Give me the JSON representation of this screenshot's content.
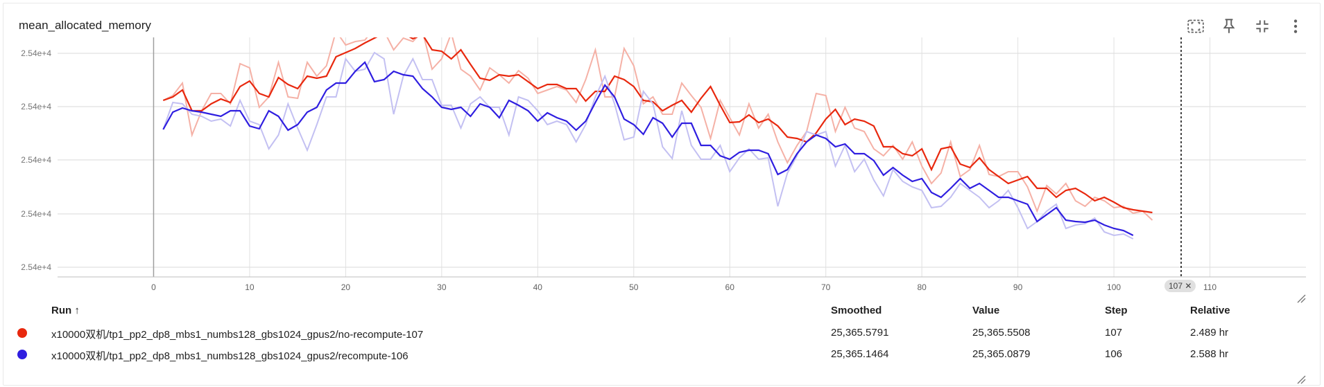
{
  "card": {
    "title": "mean_allocated_memory"
  },
  "toolbar": {
    "icons": [
      "fit-to-screen-icon",
      "pin-icon",
      "collapse-icon",
      "more-vert-icon"
    ]
  },
  "colors": {
    "series1": "#e8280e",
    "series1_raw": "#f5b1a6",
    "series2": "#2f1ee0",
    "series2_raw": "#c3c0f2"
  },
  "chart_data": {
    "type": "line",
    "title": "",
    "xlabel": "",
    "ylabel": "",
    "xlim": [
      -10,
      120
    ],
    "x_ticks": [
      0,
      10,
      20,
      30,
      40,
      50,
      60,
      70,
      80,
      90,
      100,
      110
    ],
    "y_tick_labels": [
      "2.54e+4",
      "2.54e+4",
      "2.54e+4",
      "2.54e+4",
      "2.54e+4"
    ],
    "grid": true,
    "hover_step": 107,
    "hover_step_label": "107",
    "series": [
      {
        "name": "x10000双机/tp1_pp2_dp8_mbs1_numbs128_gbs1024_gpus2/no-recompute-107",
        "color": "#e8280e",
        "raw_color": "#f5b1a6",
        "smoothed_y": [
          145,
          140,
          130,
          160,
          160,
          150,
          143,
          148,
          125,
          117,
          135,
          140,
          112,
          122,
          128,
          110,
          113,
          110,
          82,
          76,
          70,
          62,
          55,
          48,
          52,
          48,
          56,
          50,
          72,
          74,
          85,
          72,
          93,
          113,
          116,
          108,
          110,
          108,
          118,
          128,
          122,
          122,
          128,
          128,
          146,
          132,
          132,
          110,
          115,
          125,
          145,
          147,
          160,
          152,
          145,
          162,
          142,
          125,
          152,
          177,
          176,
          166,
          177,
          172,
          182,
          198,
          200,
          205,
          192,
          172,
          158,
          180,
          172,
          175,
          182,
          212,
          212,
          222,
          225,
          215,
          245,
          215,
          212,
          237,
          242,
          228,
          245,
          255,
          265,
          260,
          255,
          272,
          272,
          285,
          275,
          272,
          280,
          290,
          285,
          292,
          300,
          303,
          305,
          307
        ],
        "raw_y": [
          145,
          138,
          120,
          195,
          160,
          135,
          135,
          150,
          92,
          98,
          155,
          140,
          90,
          140,
          142,
          90,
          110,
          95,
          45,
          65,
          60,
          58,
          40,
          45,
          72,
          55,
          60,
          45,
          100,
          85,
          48,
          100,
          110,
          130,
          98,
          108,
          120,
          102,
          113,
          135,
          130,
          125,
          130,
          148,
          115,
          72,
          140,
          140,
          70,
          95,
          150,
          140,
          165,
          165,
          120,
          138,
          155,
          200,
          145,
          170,
          195,
          150,
          185,
          165,
          205,
          235,
          210,
          190,
          135,
          138,
          190,
          155,
          185,
          190,
          215,
          225,
          210,
          230,
          205,
          240,
          265,
          250,
          205,
          255,
          245,
          210,
          252,
          255,
          248,
          248,
          270,
          305,
          268,
          280,
          265,
          290,
          298,
          285,
          290,
          300,
          298,
          308,
          305,
          318
        ]
      },
      {
        "name": "x10000双机/tp1_pp2_dp8_mbs1_numbs128_gbs1024_gpus2/recompute-106",
        "color": "#2f1ee0",
        "raw_color": "#c3c0f2",
        "smoothed_y": [
          187,
          162,
          156,
          160,
          162,
          165,
          168,
          160,
          160,
          182,
          186,
          160,
          168,
          188,
          180,
          162,
          155,
          130,
          120,
          120,
          103,
          90,
          118,
          115,
          103,
          108,
          110,
          128,
          140,
          155,
          158,
          155,
          168,
          150,
          155,
          170,
          145,
          152,
          160,
          175,
          163,
          170,
          175,
          188,
          175,
          148,
          123,
          140,
          172,
          180,
          194,
          170,
          178,
          198,
          178,
          178,
          210,
          210,
          225,
          230,
          220,
          217,
          217,
          222,
          252,
          245,
          222,
          205,
          195,
          200,
          212,
          208,
          222,
          222,
          232,
          253,
          242,
          253,
          262,
          258,
          278,
          285,
          272,
          258,
          272,
          265,
          275,
          285,
          285,
          290,
          295,
          320,
          310,
          300,
          318,
          320,
          321,
          318,
          325,
          330,
          333,
          340
        ],
        "raw_y": [
          187,
          148,
          150,
          165,
          168,
          175,
          172,
          182,
          145,
          175,
          180,
          215,
          195,
          150,
          185,
          217,
          180,
          140,
          140,
          85,
          103,
          100,
          76,
          85,
          165,
          110,
          85,
          115,
          115,
          152,
          152,
          185,
          150,
          140,
          155,
          155,
          195,
          140,
          145,
          160,
          180,
          175,
          180,
          205,
          180,
          140,
          110,
          150,
          202,
          198,
          132,
          150,
          212,
          229,
          160,
          210,
          230,
          230,
          210,
          248,
          228,
          215,
          230,
          228,
          298,
          250,
          225,
          190,
          195,
          190,
          240,
          210,
          248,
          230,
          260,
          283,
          245,
          262,
          270,
          275,
          300,
          298,
          285,
          265,
          275,
          285,
          300,
          290,
          275,
          300,
          330,
          320,
          305,
          295,
          330,
          325,
          323,
          315,
          335,
          340,
          338,
          345
        ]
      }
    ]
  },
  "table": {
    "headers": {
      "run": "Run ↑",
      "smoothed": "Smoothed",
      "value": "Value",
      "step": "Step",
      "relative": "Relative"
    },
    "rows": [
      {
        "run": "x10000双机/tp1_pp2_dp8_mbs1_numbs128_gbs1024_gpus2/no-recompute-107",
        "smoothed": "25,365.5791",
        "value": "25,365.5508",
        "step": "107",
        "relative": "2.489 hr",
        "color": "#e8280e"
      },
      {
        "run": "x10000双机/tp1_pp2_dp8_mbs1_numbs128_gbs1024_gpus2/recompute-106",
        "smoothed": "25,365.1464",
        "value": "25,365.0879",
        "step": "106",
        "relative": "2.588 hr",
        "color": "#2f1ee0"
      }
    ]
  }
}
